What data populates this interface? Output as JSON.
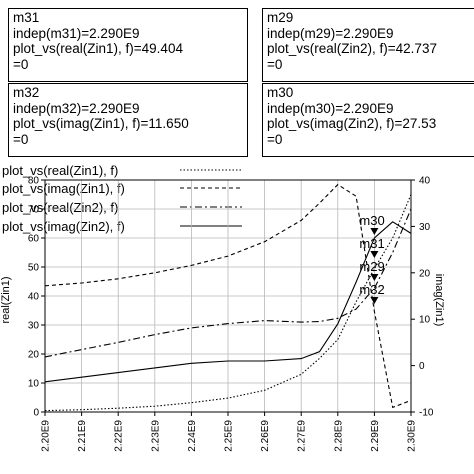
{
  "markers": [
    {
      "id": "m31",
      "lines": [
        "m31",
        "indep(m31)=2.290E9",
        "plot_vs(real(Zin1), f)=49.404",
        "=0"
      ]
    },
    {
      "id": "m29",
      "lines": [
        "m29",
        "indep(m29)=2.290E9",
        "plot_vs(real(Zin2), f)=42.737",
        "=0"
      ]
    },
    {
      "id": "m32",
      "lines": [
        "m32",
        "indep(m32)=2.290E9",
        "plot_vs(imag(Zin1), f)=11.650",
        "=0"
      ]
    },
    {
      "id": "m30",
      "lines": [
        "m30",
        "indep(m30)=2.290E9",
        "plot_vs(imag(Zin2), f)=27.53",
        "=0"
      ]
    }
  ],
  "legend": [
    {
      "label": "plot_vs(real(Zin1), f)",
      "style": "dotted"
    },
    {
      "label": "plot_vs(imag(Zin1), f)",
      "style": "dashed"
    },
    {
      "label": "plot_vs(real(Zin2), f)",
      "style": "dashdot"
    },
    {
      "label": "plot_vs(imag(Zin2), f)",
      "style": "solid"
    }
  ],
  "chart_data": {
    "type": "line",
    "xlabel": "",
    "ylabel_left": "real(Zin1)",
    "ylabel_right": "imag(Zin1)",
    "x_ticks": [
      "2.20E9",
      "2.21E9",
      "2.22E9",
      "2.23E9",
      "2.24E9",
      "2.25E9",
      "2.26E9",
      "2.27E9",
      "2.28E9",
      "2.29E9",
      "2.30E9"
    ],
    "xlim": [
      2.2,
      2.3
    ],
    "left_ticks": [
      "0",
      "10",
      "20",
      "30",
      "40",
      "50",
      "60",
      "70",
      "80"
    ],
    "ylim_left": [
      0,
      80
    ],
    "right_ticks": [
      "-10",
      "0",
      "10",
      "20",
      "30",
      "40"
    ],
    "ylim_right": [
      -10,
      40
    ],
    "grid": true,
    "series": [
      {
        "name": "plot_vs(real(Zin1), f)",
        "axis": "left",
        "style": "dotted",
        "x": [
          2.2,
          2.21,
          2.22,
          2.23,
          2.24,
          2.25,
          2.26,
          2.27,
          2.275,
          2.28,
          2.285,
          2.29,
          2.295,
          2.3
        ],
        "y": [
          0.5,
          0.8,
          1.3,
          2.0,
          3.2,
          4.8,
          7.5,
          13.0,
          18.5,
          25.0,
          38.0,
          49.404,
          60.0,
          75.0
        ]
      },
      {
        "name": "plot_vs(imag(Zin1), f)",
        "axis": "right",
        "style": "dashed",
        "x": [
          2.2,
          2.21,
          2.22,
          2.23,
          2.24,
          2.25,
          2.26,
          2.27,
          2.275,
          2.28,
          2.285,
          2.29,
          2.295,
          2.3
        ],
        "y": [
          17.2,
          17.8,
          18.7,
          20.0,
          21.6,
          23.6,
          26.7,
          31.3,
          35.0,
          39.0,
          36.5,
          11.65,
          -9.0,
          -7.5
        ]
      },
      {
        "name": "plot_vs(real(Zin2), f)",
        "axis": "left",
        "style": "dashdot",
        "x": [
          2.2,
          2.21,
          2.22,
          2.23,
          2.24,
          2.25,
          2.26,
          2.27,
          2.275,
          2.28,
          2.285,
          2.29,
          2.295,
          2.3
        ],
        "y": [
          19.0,
          21.5,
          24.0,
          26.7,
          29.0,
          30.5,
          31.5,
          31.0,
          31.2,
          32.3,
          35.5,
          42.737,
          55.0,
          70.0
        ]
      },
      {
        "name": "plot_vs(imag(Zin2), f)",
        "axis": "right",
        "style": "solid",
        "x": [
          2.2,
          2.21,
          2.22,
          2.23,
          2.24,
          2.25,
          2.26,
          2.27,
          2.275,
          2.28,
          2.285,
          2.29,
          2.295,
          2.3
        ],
        "y": [
          -3.5,
          -2.5,
          -1.5,
          -0.5,
          0.5,
          1.0,
          1.0,
          1.5,
          3.0,
          9.0,
          18.0,
          27.53,
          31.0,
          28.5
        ]
      }
    ],
    "marker_labels": [
      "m30",
      "m31",
      "m29",
      "m32"
    ],
    "marker_x": 2.29
  }
}
